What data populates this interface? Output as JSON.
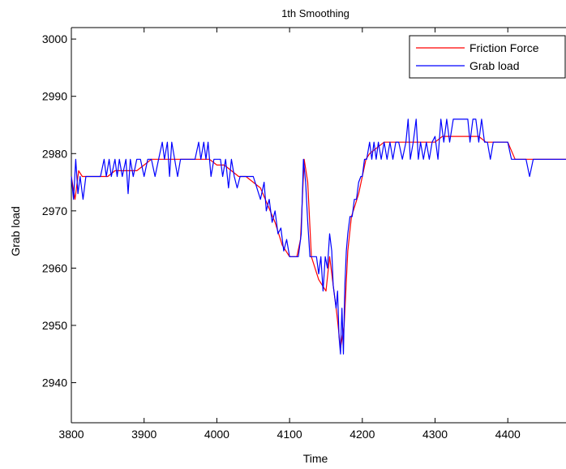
{
  "chart_data": {
    "type": "line",
    "title": "1th Smoothing",
    "xlabel": "Time",
    "ylabel": "Grab load",
    "xlim": [
      3800,
      4480
    ],
    "ylim": [
      2933,
      3002
    ],
    "xticks": [
      3800,
      3900,
      4000,
      4100,
      4200,
      4300,
      4400
    ],
    "yticks": [
      2940,
      2950,
      2960,
      2970,
      2980,
      2990,
      3000
    ],
    "grid": false,
    "legend_position": "top-right",
    "series": [
      {
        "name": "Friction Force",
        "color": "#ff0000",
        "points": [
          [
            3800,
            2976
          ],
          [
            3805,
            2972
          ],
          [
            3810,
            2977
          ],
          [
            3815,
            2976
          ],
          [
            3820,
            2976
          ],
          [
            3830,
            2976
          ],
          [
            3840,
            2976
          ],
          [
            3850,
            2976
          ],
          [
            3860,
            2977
          ],
          [
            3870,
            2977
          ],
          [
            3880,
            2977
          ],
          [
            3890,
            2977
          ],
          [
            3900,
            2978
          ],
          [
            3910,
            2979
          ],
          [
            3920,
            2979
          ],
          [
            3930,
            2979
          ],
          [
            3940,
            2979
          ],
          [
            3950,
            2979
          ],
          [
            3960,
            2979
          ],
          [
            3970,
            2979
          ],
          [
            3980,
            2979
          ],
          [
            3990,
            2979
          ],
          [
            4000,
            2978
          ],
          [
            4010,
            2978
          ],
          [
            4020,
            2977
          ],
          [
            4030,
            2976
          ],
          [
            4040,
            2976
          ],
          [
            4050,
            2975
          ],
          [
            4060,
            2974
          ],
          [
            4070,
            2971
          ],
          [
            4080,
            2968
          ],
          [
            4090,
            2964
          ],
          [
            4100,
            2962
          ],
          [
            4110,
            2962
          ],
          [
            4115,
            2965
          ],
          [
            4120,
            2979
          ],
          [
            4125,
            2975
          ],
          [
            4130,
            2962
          ],
          [
            4140,
            2958
          ],
          [
            4150,
            2956
          ],
          [
            4155,
            2962
          ],
          [
            4160,
            2957
          ],
          [
            4165,
            2952
          ],
          [
            4170,
            2946
          ],
          [
            4175,
            2950
          ],
          [
            4180,
            2963
          ],
          [
            4185,
            2969
          ],
          [
            4190,
            2971
          ],
          [
            4195,
            2973
          ],
          [
            4200,
            2976
          ],
          [
            4205,
            2979
          ],
          [
            4210,
            2980
          ],
          [
            4220,
            2981
          ],
          [
            4230,
            2982
          ],
          [
            4240,
            2982
          ],
          [
            4250,
            2982
          ],
          [
            4260,
            2982
          ],
          [
            4270,
            2982
          ],
          [
            4280,
            2982
          ],
          [
            4290,
            2982
          ],
          [
            4300,
            2982
          ],
          [
            4310,
            2983
          ],
          [
            4320,
            2983
          ],
          [
            4330,
            2983
          ],
          [
            4340,
            2983
          ],
          [
            4350,
            2983
          ],
          [
            4360,
            2983
          ],
          [
            4370,
            2982
          ],
          [
            4380,
            2982
          ],
          [
            4390,
            2982
          ],
          [
            4400,
            2982
          ],
          [
            4410,
            2979
          ],
          [
            4420,
            2979
          ],
          [
            4430,
            2979
          ],
          [
            4440,
            2979
          ],
          [
            4450,
            2979
          ],
          [
            4460,
            2979
          ],
          [
            4470,
            2979
          ],
          [
            4480,
            2979
          ]
        ]
      },
      {
        "name": "Grab load",
        "color": "#0000ff",
        "points": [
          [
            3800,
            2976
          ],
          [
            3803,
            2972
          ],
          [
            3806,
            2979
          ],
          [
            3809,
            2973
          ],
          [
            3812,
            2976
          ],
          [
            3816,
            2972
          ],
          [
            3820,
            2976
          ],
          [
            3825,
            2976
          ],
          [
            3830,
            2976
          ],
          [
            3835,
            2976
          ],
          [
            3840,
            2976
          ],
          [
            3845,
            2979
          ],
          [
            3848,
            2976
          ],
          [
            3852,
            2979
          ],
          [
            3855,
            2976
          ],
          [
            3860,
            2979
          ],
          [
            3863,
            2976
          ],
          [
            3866,
            2979
          ],
          [
            3870,
            2976
          ],
          [
            3875,
            2979
          ],
          [
            3878,
            2973
          ],
          [
            3881,
            2979
          ],
          [
            3885,
            2976
          ],
          [
            3890,
            2979
          ],
          [
            3895,
            2979
          ],
          [
            3900,
            2976
          ],
          [
            3905,
            2979
          ],
          [
            3910,
            2979
          ],
          [
            3915,
            2976
          ],
          [
            3920,
            2979
          ],
          [
            3925,
            2982
          ],
          [
            3928,
            2979
          ],
          [
            3932,
            2982
          ],
          [
            3935,
            2976
          ],
          [
            3938,
            2982
          ],
          [
            3942,
            2979
          ],
          [
            3946,
            2976
          ],
          [
            3950,
            2979
          ],
          [
            3955,
            2979
          ],
          [
            3960,
            2979
          ],
          [
            3965,
            2979
          ],
          [
            3970,
            2979
          ],
          [
            3975,
            2982
          ],
          [
            3978,
            2979
          ],
          [
            3982,
            2982
          ],
          [
            3985,
            2979
          ],
          [
            3988,
            2982
          ],
          [
            3992,
            2976
          ],
          [
            3996,
            2979
          ],
          [
            4000,
            2979
          ],
          [
            4005,
            2979
          ],
          [
            4008,
            2976
          ],
          [
            4012,
            2979
          ],
          [
            4016,
            2974
          ],
          [
            4020,
            2979
          ],
          [
            4024,
            2976
          ],
          [
            4028,
            2974
          ],
          [
            4032,
            2976
          ],
          [
            4036,
            2976
          ],
          [
            4040,
            2976
          ],
          [
            4045,
            2976
          ],
          [
            4050,
            2976
          ],
          [
            4055,
            2974
          ],
          [
            4060,
            2972
          ],
          [
            4065,
            2975
          ],
          [
            4068,
            2970
          ],
          [
            4072,
            2972
          ],
          [
            4076,
            2968
          ],
          [
            4080,
            2970
          ],
          [
            4084,
            2966
          ],
          [
            4088,
            2967
          ],
          [
            4092,
            2963
          ],
          [
            4096,
            2965
          ],
          [
            4100,
            2962
          ],
          [
            4104,
            2962
          ],
          [
            4108,
            2962
          ],
          [
            4112,
            2962
          ],
          [
            4116,
            2966
          ],
          [
            4119,
            2979
          ],
          [
            4122,
            2975
          ],
          [
            4125,
            2968
          ],
          [
            4128,
            2962
          ],
          [
            4131,
            2962
          ],
          [
            4134,
            2962
          ],
          [
            4137,
            2962
          ],
          [
            4140,
            2959
          ],
          [
            4143,
            2962
          ],
          [
            4146,
            2956
          ],
          [
            4149,
            2962
          ],
          [
            4152,
            2960
          ],
          [
            4155,
            2966
          ],
          [
            4158,
            2963
          ],
          [
            4160,
            2957
          ],
          [
            4162,
            2955
          ],
          [
            4164,
            2953
          ],
          [
            4166,
            2956
          ],
          [
            4168,
            2948
          ],
          [
            4170,
            2945
          ],
          [
            4172,
            2953
          ],
          [
            4174,
            2945
          ],
          [
            4176,
            2957
          ],
          [
            4178,
            2963
          ],
          [
            4180,
            2966
          ],
          [
            4183,
            2969
          ],
          [
            4186,
            2969
          ],
          [
            4189,
            2972
          ],
          [
            4192,
            2972
          ],
          [
            4195,
            2975
          ],
          [
            4198,
            2976
          ],
          [
            4200,
            2976
          ],
          [
            4203,
            2979
          ],
          [
            4206,
            2979
          ],
          [
            4210,
            2982
          ],
          [
            4213,
            2979
          ],
          [
            4216,
            2982
          ],
          [
            4219,
            2979
          ],
          [
            4222,
            2982
          ],
          [
            4226,
            2979
          ],
          [
            4230,
            2982
          ],
          [
            4234,
            2979
          ],
          [
            4238,
            2982
          ],
          [
            4242,
            2979
          ],
          [
            4246,
            2982
          ],
          [
            4250,
            2982
          ],
          [
            4255,
            2979
          ],
          [
            4260,
            2982
          ],
          [
            4263,
            2986
          ],
          [
            4266,
            2979
          ],
          [
            4270,
            2982
          ],
          [
            4274,
            2986
          ],
          [
            4277,
            2979
          ],
          [
            4280,
            2982
          ],
          [
            4284,
            2979
          ],
          [
            4288,
            2982
          ],
          [
            4292,
            2979
          ],
          [
            4296,
            2982
          ],
          [
            4300,
            2983
          ],
          [
            4304,
            2979
          ],
          [
            4308,
            2986
          ],
          [
            4312,
            2982
          ],
          [
            4316,
            2986
          ],
          [
            4320,
            2982
          ],
          [
            4325,
            2986
          ],
          [
            4330,
            2986
          ],
          [
            4335,
            2986
          ],
          [
            4340,
            2986
          ],
          [
            4345,
            2986
          ],
          [
            4348,
            2982
          ],
          [
            4352,
            2986
          ],
          [
            4356,
            2986
          ],
          [
            4360,
            2982
          ],
          [
            4364,
            2986
          ],
          [
            4368,
            2982
          ],
          [
            4372,
            2982
          ],
          [
            4376,
            2979
          ],
          [
            4380,
            2982
          ],
          [
            4385,
            2982
          ],
          [
            4390,
            2982
          ],
          [
            4395,
            2982
          ],
          [
            4400,
            2982
          ],
          [
            4405,
            2979
          ],
          [
            4410,
            2979
          ],
          [
            4415,
            2979
          ],
          [
            4420,
            2979
          ],
          [
            4425,
            2979
          ],
          [
            4430,
            2976
          ],
          [
            4435,
            2979
          ],
          [
            4440,
            2979
          ],
          [
            4445,
            2979
          ],
          [
            4450,
            2979
          ],
          [
            4455,
            2979
          ],
          [
            4460,
            2979
          ],
          [
            4465,
            2979
          ],
          [
            4470,
            2979
          ],
          [
            4475,
            2979
          ],
          [
            4480,
            2979
          ]
        ]
      }
    ]
  }
}
